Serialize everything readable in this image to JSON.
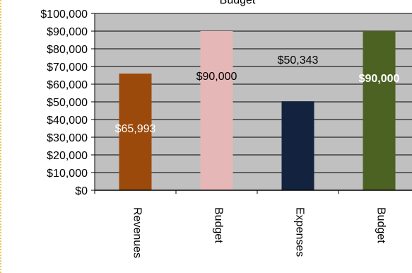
{
  "chart_data": {
    "type": "bar",
    "title": "Budget",
    "xlabel": "",
    "ylabel": "",
    "ylim": [
      0,
      100000
    ],
    "grid": true,
    "legend": "none",
    "categories": [
      "Revenues",
      "Budget",
      "Expenses",
      "Budget"
    ],
    "values": [
      65993,
      90000,
      50343,
      90000
    ],
    "data_labels": [
      "$65,993",
      "$90,000",
      "$50,343",
      "$90,000"
    ],
    "colors": [
      "#9b4a0c",
      "#e6b7b7",
      "#13233f",
      "#4c6222"
    ],
    "label_colors": [
      "#ffffff",
      "#000000",
      "#000000",
      "#ffffff"
    ],
    "plot_background": "#c0c0c0",
    "y_ticks": [
      "$0",
      "$10,000",
      "$20,000",
      "$30,000",
      "$40,000",
      "$50,000",
      "$60,000",
      "$70,000",
      "$80,000",
      "$90,000",
      "$100,000"
    ]
  }
}
